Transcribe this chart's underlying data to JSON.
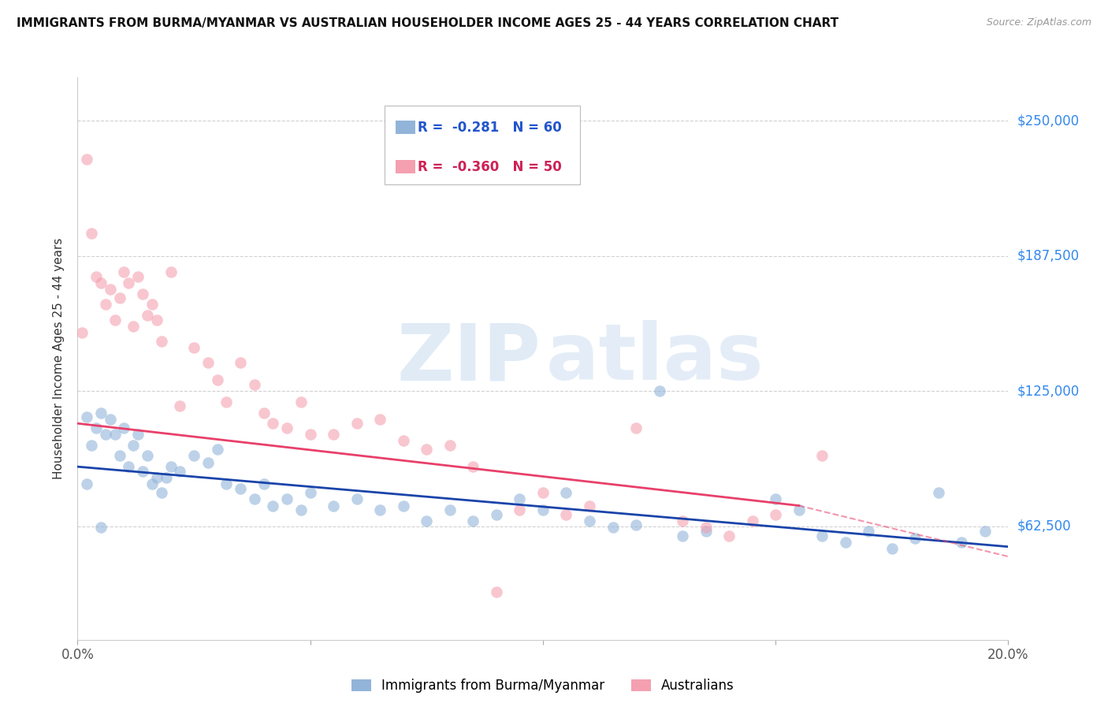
{
  "title": "IMMIGRANTS FROM BURMA/MYANMAR VS AUSTRALIAN HOUSEHOLDER INCOME AGES 25 - 44 YEARS CORRELATION CHART",
  "source": "Source: ZipAtlas.com",
  "ylabel": "Householder Income Ages 25 - 44 years",
  "ytick_labels": [
    "$250,000",
    "$187,500",
    "$125,000",
    "$62,500"
  ],
  "ytick_values": [
    250000,
    187500,
    125000,
    62500
  ],
  "legend_label1": "Immigrants from Burma/Myanmar",
  "legend_label2": "Australians",
  "legend_r1": "R =  -0.281",
  "legend_n1": "N = 60",
  "legend_r2": "R =  -0.360",
  "legend_n2": "N = 50",
  "xmin": 0.0,
  "xmax": 0.2,
  "ymin": 10000,
  "ymax": 270000,
  "color_blue": "#92B4D9",
  "color_pink": "#F4A0B0",
  "line_blue": "#1A44AA",
  "line_pink": "#E8406A",
  "blue_points": [
    [
      0.002,
      113000
    ],
    [
      0.003,
      100000
    ],
    [
      0.004,
      108000
    ],
    [
      0.005,
      115000
    ],
    [
      0.006,
      105000
    ],
    [
      0.007,
      112000
    ],
    [
      0.008,
      105000
    ],
    [
      0.009,
      95000
    ],
    [
      0.01,
      108000
    ],
    [
      0.011,
      90000
    ],
    [
      0.012,
      100000
    ],
    [
      0.013,
      105000
    ],
    [
      0.014,
      88000
    ],
    [
      0.015,
      95000
    ],
    [
      0.016,
      82000
    ],
    [
      0.017,
      85000
    ],
    [
      0.018,
      78000
    ],
    [
      0.019,
      85000
    ],
    [
      0.02,
      90000
    ],
    [
      0.022,
      88000
    ],
    [
      0.025,
      95000
    ],
    [
      0.028,
      92000
    ],
    [
      0.03,
      98000
    ],
    [
      0.032,
      82000
    ],
    [
      0.035,
      80000
    ],
    [
      0.038,
      75000
    ],
    [
      0.04,
      82000
    ],
    [
      0.042,
      72000
    ],
    [
      0.045,
      75000
    ],
    [
      0.048,
      70000
    ],
    [
      0.05,
      78000
    ],
    [
      0.055,
      72000
    ],
    [
      0.06,
      75000
    ],
    [
      0.065,
      70000
    ],
    [
      0.07,
      72000
    ],
    [
      0.075,
      65000
    ],
    [
      0.08,
      70000
    ],
    [
      0.085,
      65000
    ],
    [
      0.09,
      68000
    ],
    [
      0.095,
      75000
    ],
    [
      0.1,
      70000
    ],
    [
      0.105,
      78000
    ],
    [
      0.11,
      65000
    ],
    [
      0.115,
      62000
    ],
    [
      0.12,
      63000
    ],
    [
      0.125,
      125000
    ],
    [
      0.13,
      58000
    ],
    [
      0.135,
      60000
    ],
    [
      0.15,
      75000
    ],
    [
      0.155,
      70000
    ],
    [
      0.16,
      58000
    ],
    [
      0.165,
      55000
    ],
    [
      0.17,
      60000
    ],
    [
      0.175,
      52000
    ],
    [
      0.18,
      57000
    ],
    [
      0.19,
      55000
    ],
    [
      0.195,
      60000
    ],
    [
      0.185,
      78000
    ],
    [
      0.005,
      62000
    ],
    [
      0.002,
      82000
    ]
  ],
  "pink_points": [
    [
      0.001,
      152000
    ],
    [
      0.002,
      232000
    ],
    [
      0.003,
      198000
    ],
    [
      0.004,
      178000
    ],
    [
      0.005,
      175000
    ],
    [
      0.006,
      165000
    ],
    [
      0.007,
      172000
    ],
    [
      0.008,
      158000
    ],
    [
      0.009,
      168000
    ],
    [
      0.01,
      180000
    ],
    [
      0.011,
      175000
    ],
    [
      0.012,
      155000
    ],
    [
      0.013,
      178000
    ],
    [
      0.014,
      170000
    ],
    [
      0.015,
      160000
    ],
    [
      0.016,
      165000
    ],
    [
      0.017,
      158000
    ],
    [
      0.018,
      148000
    ],
    [
      0.02,
      180000
    ],
    [
      0.022,
      118000
    ],
    [
      0.025,
      145000
    ],
    [
      0.028,
      138000
    ],
    [
      0.03,
      130000
    ],
    [
      0.032,
      120000
    ],
    [
      0.035,
      138000
    ],
    [
      0.038,
      128000
    ],
    [
      0.04,
      115000
    ],
    [
      0.042,
      110000
    ],
    [
      0.045,
      108000
    ],
    [
      0.048,
      120000
    ],
    [
      0.05,
      105000
    ],
    [
      0.055,
      105000
    ],
    [
      0.06,
      110000
    ],
    [
      0.065,
      112000
    ],
    [
      0.07,
      102000
    ],
    [
      0.075,
      98000
    ],
    [
      0.08,
      100000
    ],
    [
      0.085,
      90000
    ],
    [
      0.09,
      32000
    ],
    [
      0.095,
      70000
    ],
    [
      0.1,
      78000
    ],
    [
      0.105,
      68000
    ],
    [
      0.11,
      72000
    ],
    [
      0.12,
      108000
    ],
    [
      0.13,
      65000
    ],
    [
      0.135,
      62000
    ],
    [
      0.14,
      58000
    ],
    [
      0.145,
      65000
    ],
    [
      0.15,
      68000
    ],
    [
      0.16,
      95000
    ]
  ],
  "blue_trendline": [
    [
      0.0,
      90000
    ],
    [
      0.2,
      53000
    ]
  ],
  "pink_trendline_solid": [
    [
      0.0,
      110000
    ],
    [
      0.155,
      72000
    ]
  ],
  "pink_trendline_dashed": [
    [
      0.155,
      72000
    ],
    [
      0.22,
      38000
    ]
  ]
}
